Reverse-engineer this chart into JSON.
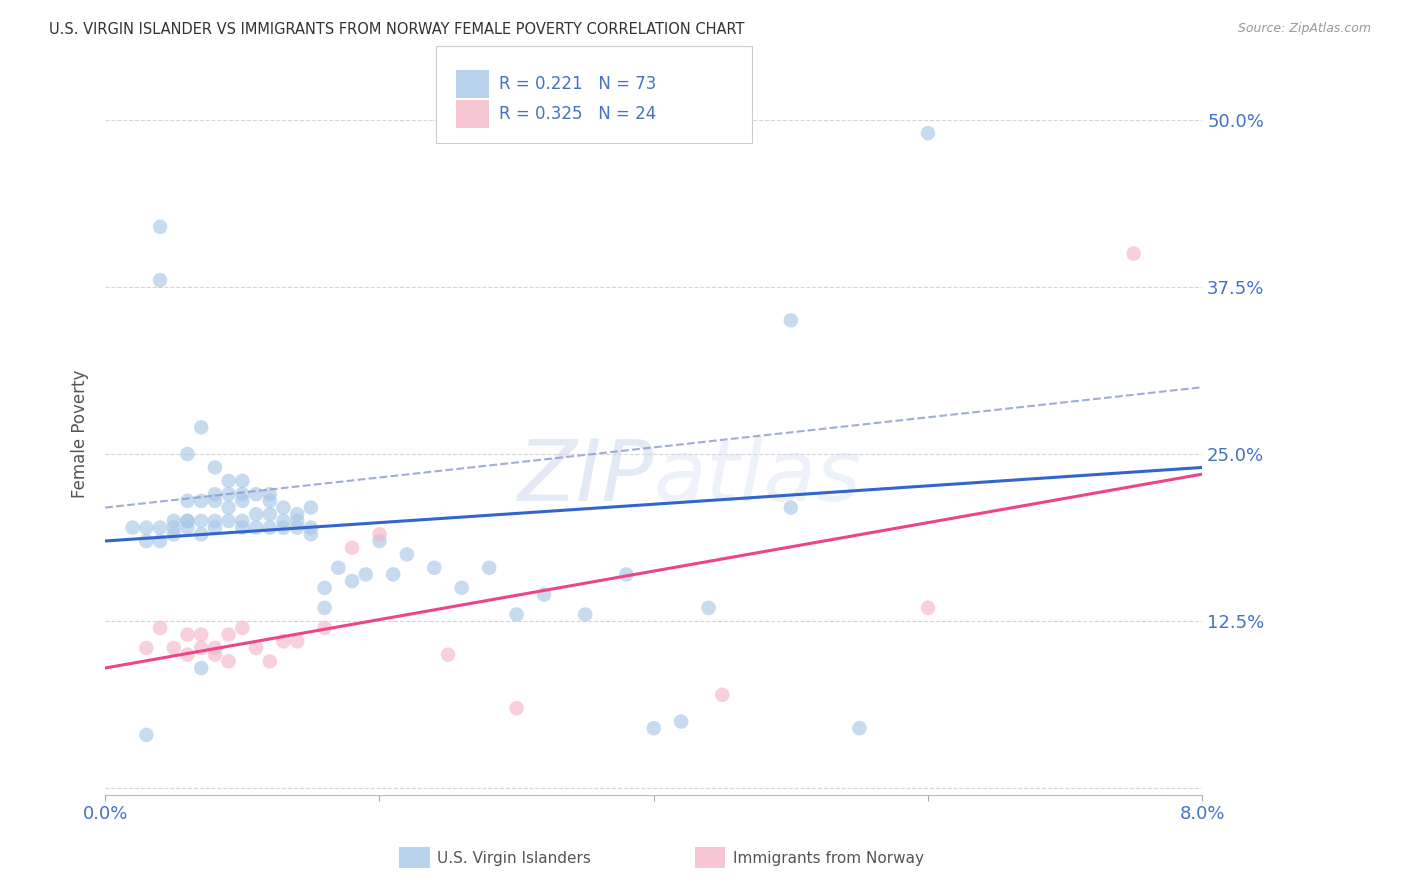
{
  "title": "U.S. VIRGIN ISLANDER VS IMMIGRANTS FROM NORWAY FEMALE POVERTY CORRELATION CHART",
  "source": "Source: ZipAtlas.com",
  "ylabel_label": "Female Poverty",
  "xlim": [
    0.0,
    0.08
  ],
  "ylim": [
    -0.005,
    0.535
  ],
  "ytick_vals": [
    0.0,
    0.125,
    0.25,
    0.375,
    0.5
  ],
  "ytick_labels": [
    "",
    "12.5%",
    "25.0%",
    "37.5%",
    "50.0%"
  ],
  "xtick_vals": [
    0.0,
    0.02,
    0.04,
    0.06,
    0.08
  ],
  "xtick_labels": [
    "0.0%",
    "",
    "",
    "",
    "8.0%"
  ],
  "blue_color": "#a8c8e8",
  "pink_color": "#f4b8c8",
  "blue_line_color": "#3366cc",
  "pink_line_color": "#ee4488",
  "dashed_line_color": "#8899cc",
  "blue_R": 0.221,
  "blue_N": 73,
  "pink_R": 0.325,
  "pink_N": 24,
  "watermark": "ZIPatlas",
  "legend_label_blue": "U.S. Virgin Islanders",
  "legend_label_pink": "Immigrants from Norway",
  "blue_scatter_x": [
    0.002,
    0.003,
    0.003,
    0.004,
    0.004,
    0.004,
    0.005,
    0.005,
    0.005,
    0.006,
    0.006,
    0.006,
    0.006,
    0.006,
    0.007,
    0.007,
    0.007,
    0.007,
    0.008,
    0.008,
    0.008,
    0.008,
    0.008,
    0.009,
    0.009,
    0.009,
    0.009,
    0.01,
    0.01,
    0.01,
    0.01,
    0.01,
    0.011,
    0.011,
    0.011,
    0.012,
    0.012,
    0.012,
    0.012,
    0.013,
    0.013,
    0.013,
    0.014,
    0.014,
    0.014,
    0.015,
    0.015,
    0.015,
    0.016,
    0.016,
    0.017,
    0.018,
    0.019,
    0.02,
    0.021,
    0.022,
    0.024,
    0.026,
    0.028,
    0.03,
    0.032,
    0.035,
    0.038,
    0.04,
    0.042,
    0.044,
    0.05,
    0.055,
    0.06,
    0.004,
    0.003,
    0.05,
    0.007
  ],
  "blue_scatter_y": [
    0.195,
    0.195,
    0.185,
    0.42,
    0.185,
    0.195,
    0.195,
    0.2,
    0.19,
    0.2,
    0.2,
    0.195,
    0.215,
    0.25,
    0.19,
    0.2,
    0.215,
    0.27,
    0.195,
    0.2,
    0.215,
    0.22,
    0.24,
    0.2,
    0.21,
    0.22,
    0.23,
    0.195,
    0.2,
    0.215,
    0.22,
    0.23,
    0.195,
    0.205,
    0.22,
    0.195,
    0.205,
    0.215,
    0.22,
    0.195,
    0.2,
    0.21,
    0.195,
    0.2,
    0.205,
    0.19,
    0.195,
    0.21,
    0.135,
    0.15,
    0.165,
    0.155,
    0.16,
    0.185,
    0.16,
    0.175,
    0.165,
    0.15,
    0.165,
    0.13,
    0.145,
    0.13,
    0.16,
    0.045,
    0.05,
    0.135,
    0.21,
    0.045,
    0.49,
    0.38,
    0.04,
    0.35,
    0.09
  ],
  "pink_scatter_x": [
    0.003,
    0.004,
    0.005,
    0.006,
    0.006,
    0.007,
    0.007,
    0.008,
    0.008,
    0.009,
    0.009,
    0.01,
    0.011,
    0.012,
    0.013,
    0.014,
    0.016,
    0.018,
    0.02,
    0.025,
    0.03,
    0.045,
    0.06,
    0.075
  ],
  "pink_scatter_y": [
    0.105,
    0.12,
    0.105,
    0.1,
    0.115,
    0.105,
    0.115,
    0.1,
    0.105,
    0.095,
    0.115,
    0.12,
    0.105,
    0.095,
    0.11,
    0.11,
    0.12,
    0.18,
    0.19,
    0.1,
    0.06,
    0.07,
    0.135,
    0.4
  ],
  "blue_line_x": [
    0.0,
    0.08
  ],
  "blue_line_y": [
    0.185,
    0.24
  ],
  "pink_line_x": [
    0.0,
    0.08
  ],
  "pink_line_y": [
    0.09,
    0.235
  ],
  "dashed_line_x": [
    0.0,
    0.08
  ],
  "dashed_line_y": [
    0.21,
    0.3
  ]
}
